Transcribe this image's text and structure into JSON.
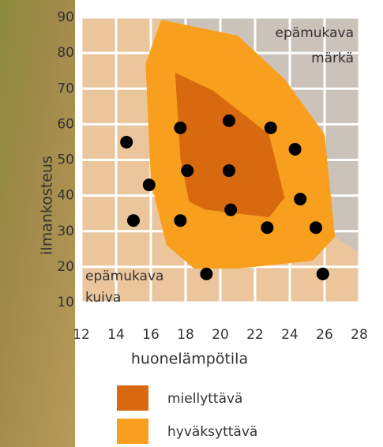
{
  "chart_data": {
    "type": "scatter",
    "x_label": "huonelämpötila",
    "y_label": "ilmankosteus",
    "xlim": [
      12,
      28
    ],
    "xticks": [
      12,
      14,
      16,
      18,
      20,
      22,
      24,
      26,
      28
    ],
    "ylim": [
      10,
      90
    ],
    "yticks": [
      10,
      20,
      30,
      40,
      50,
      60,
      70,
      80,
      90
    ],
    "grid": true,
    "plot_color": "#ebc69c",
    "grid_color": "#ffffff",
    "background_region": {
      "color": "#cbc2ba",
      "x": [
        16.8,
        28,
        28,
        26.6,
        26.0,
        23.7,
        21.0,
        16.6
      ],
      "y": [
        90,
        90,
        24,
        28.4,
        57.2,
        72.7,
        84.9,
        89.3
      ]
    },
    "zones": [
      {
        "name": "hyväksyttävä",
        "color": "#f8a01e",
        "x": [
          16.6,
          21.0,
          23.7,
          26.0,
          26.6,
          25.3,
          21.0,
          18.5,
          16.9,
          16.0,
          15.7
        ],
        "y": [
          89.3,
          84.9,
          72.7,
          57.2,
          28.4,
          21.7,
          19.5,
          19.5,
          26.1,
          43.9,
          77.1
        ]
      },
      {
        "name": "miellyttävä",
        "color": "#d8690e",
        "x": [
          17.4,
          19.6,
          22.8,
          23.7,
          22.8,
          19.1,
          18.2,
          17.7
        ],
        "y": [
          74.5,
          69.4,
          57.2,
          39.4,
          33.9,
          36.1,
          38.3,
          50.5
        ]
      }
    ],
    "series": [
      {
        "color": "#000000",
        "x": [
          14.6,
          15.0,
          15.9,
          17.7,
          17.7,
          18.1,
          19.2,
          20.5,
          20.5,
          20.6,
          22.9,
          22.7,
          24.3,
          24.6,
          25.5,
          25.9
        ],
        "values": [
          55,
          33,
          43,
          59,
          33,
          47,
          18,
          61,
          47,
          36,
          59,
          31,
          53,
          39,
          31,
          18
        ]
      }
    ],
    "annotations": [
      "epämukava",
      "märkä",
      "epämukava",
      "kuiva"
    ]
  }
}
